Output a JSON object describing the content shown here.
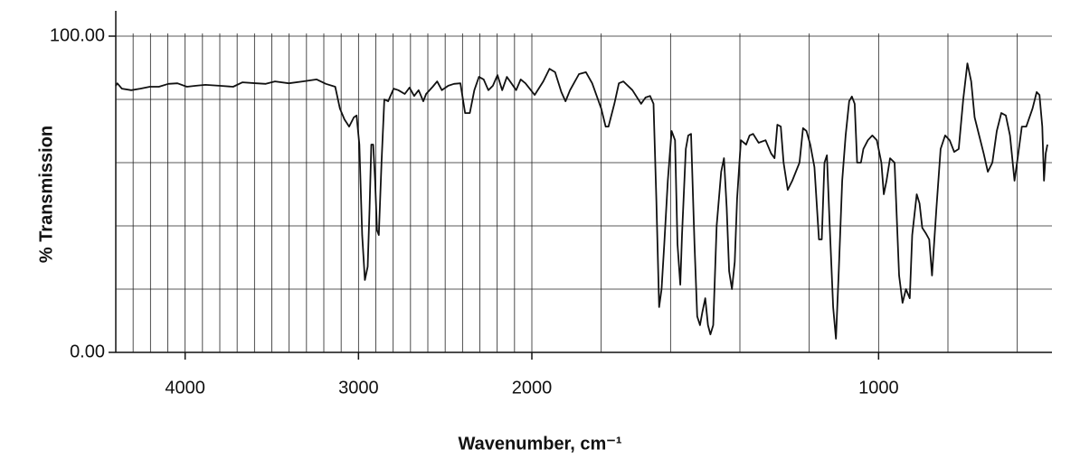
{
  "chart_data": {
    "type": "line",
    "xlabel": "Wavenumber, cm⁻¹",
    "ylabel": "% Transmission",
    "xlim": [
      4400,
      500
    ],
    "ylim": [
      0,
      100
    ],
    "x_scale": {
      "break": 2000,
      "expansion": 2
    },
    "xticks": [
      4000,
      3000,
      2000,
      1000
    ],
    "yticks": [
      {
        "value": 0,
        "label": "0.00"
      },
      {
        "value": 100,
        "label": "100.00"
      }
    ],
    "grid": true,
    "xgrid": [
      4300,
      4200,
      4100,
      4000,
      3900,
      3800,
      3700,
      3600,
      3500,
      3400,
      3300,
      3200,
      3100,
      3000,
      2900,
      2800,
      2700,
      2600,
      2500,
      2400,
      2300,
      2200,
      2100,
      2000,
      1800,
      1600,
      1400,
      1200,
      1000,
      800,
      600
    ],
    "ygrid": [
      20,
      40,
      60,
      80,
      100
    ],
    "color": "#111111",
    "x": [
      4400,
      4391,
      4365,
      4311,
      4258,
      4204,
      4151,
      4097,
      4044,
      3990,
      3937,
      3883,
      3803,
      3723,
      3669,
      3589,
      3535,
      3482,
      3402,
      3321,
      3241,
      3188,
      3134,
      3107,
      3081,
      3054,
      3027,
      3011,
      2995,
      2979,
      2963,
      2947,
      2936,
      2926,
      2915,
      2904,
      2893,
      2883,
      2867,
      2851,
      2829,
      2797,
      2770,
      2733,
      2706,
      2679,
      2653,
      2626,
      2610,
      2572,
      2546,
      2519,
      2482,
      2449,
      2412,
      2385,
      2358,
      2332,
      2305,
      2278,
      2251,
      2225,
      2198,
      2171,
      2144,
      2118,
      2091,
      2064,
      2037,
      1992,
      1967,
      1949,
      1933,
      1915,
      1903,
      1890,
      1864,
      1844,
      1826,
      1800,
      1787,
      1779,
      1762,
      1749,
      1736,
      1710,
      1685,
      1672,
      1659,
      1649,
      1641,
      1633,
      1626,
      1618,
      1608,
      1597,
      1587,
      1580,
      1572,
      1567,
      1556,
      1549,
      1541,
      1531,
      1523,
      1515,
      1508,
      1500,
      1492,
      1485,
      1477,
      1467,
      1454,
      1446,
      1438,
      1431,
      1423,
      1415,
      1408,
      1397,
      1382,
      1372,
      1362,
      1346,
      1326,
      1310,
      1300,
      1292,
      1282,
      1274,
      1262,
      1249,
      1228,
      1218,
      1208,
      1197,
      1185,
      1172,
      1164,
      1156,
      1149,
      1141,
      1131,
      1123,
      1115,
      1105,
      1095,
      1085,
      1077,
      1069,
      1062,
      1051,
      1044,
      1031,
      1018,
      1005,
      992,
      985,
      977,
      967,
      954,
      941,
      931,
      921,
      910,
      903,
      890,
      882,
      874,
      864,
      854,
      846,
      833,
      821,
      808,
      795,
      782,
      769,
      756,
      744,
      733,
      723,
      710,
      697,
      685,
      672,
      659,
      646,
      633,
      621,
      608,
      597,
      587,
      574,
      556,
      544,
      536,
      528,
      523,
      518,
      513
    ],
    "values": [
      84.3,
      85.1,
      83.4,
      82.9,
      83.4,
      84.0,
      84.0,
      84.9,
      85.1,
      84.0,
      84.3,
      84.6,
      84.3,
      84.0,
      85.4,
      85.1,
      84.9,
      85.7,
      85.1,
      85.7,
      86.3,
      84.9,
      84.0,
      77.1,
      73.7,
      71.4,
      74.3,
      74.9,
      65.7,
      37.1,
      22.9,
      27.1,
      45.7,
      65.7,
      65.7,
      54.3,
      38.6,
      37.1,
      60,
      80,
      79.4,
      83.4,
      82.9,
      81.7,
      83.7,
      81.1,
      82.9,
      79.4,
      81.7,
      84.0,
      85.7,
      82.9,
      84.3,
      84.9,
      85.1,
      75.7,
      75.7,
      82.9,
      87.1,
      86.3,
      82.9,
      84.3,
      87.7,
      82.9,
      87.1,
      85.1,
      82.9,
      86.3,
      85.1,
      81.4,
      85.7,
      89.7,
      88.6,
      82.3,
      79.4,
      82.9,
      88.0,
      88.6,
      85.1,
      77.1,
      71.4,
      71.4,
      78.6,
      85.1,
      85.7,
      82.9,
      78.6,
      80.6,
      81.1,
      78.6,
      48.6,
      14.3,
      20,
      34.3,
      54.3,
      70,
      67.1,
      34.3,
      21.4,
      37.1,
      64.3,
      68.6,
      69.1,
      34.3,
      11.4,
      8.6,
      12.9,
      17.1,
      8.6,
      5.7,
      8.6,
      40,
      57.1,
      61.4,
      45.7,
      25.7,
      20,
      28.6,
      48.6,
      67.1,
      65.7,
      68.6,
      69.1,
      66.3,
      67.1,
      62.9,
      61.4,
      72,
      71.4,
      60,
      51.4,
      54.3,
      60,
      70.9,
      70,
      65.7,
      58.6,
      35.7,
      35.7,
      60,
      62.3,
      40,
      14.3,
      4.3,
      25.7,
      54.3,
      68.6,
      79.4,
      80.9,
      78.6,
      60,
      60,
      64.3,
      67.1,
      68.6,
      67.1,
      60,
      50,
      54.3,
      61.4,
      60,
      24.3,
      15.7,
      20,
      17.1,
      37.1,
      50,
      47.1,
      39.4,
      37.7,
      35.7,
      24.3,
      45.7,
      64.3,
      68.6,
      67.1,
      63.4,
      64.3,
      80,
      91.4,
      85.7,
      74.3,
      68.6,
      62.9,
      57.1,
      60,
      70,
      75.7,
      74.9,
      68.6,
      54.3,
      62.9,
      71.4,
      71.4,
      77.1,
      82.3,
      81.4,
      71.4,
      54.3,
      62.9,
      65.7
    ]
  }
}
